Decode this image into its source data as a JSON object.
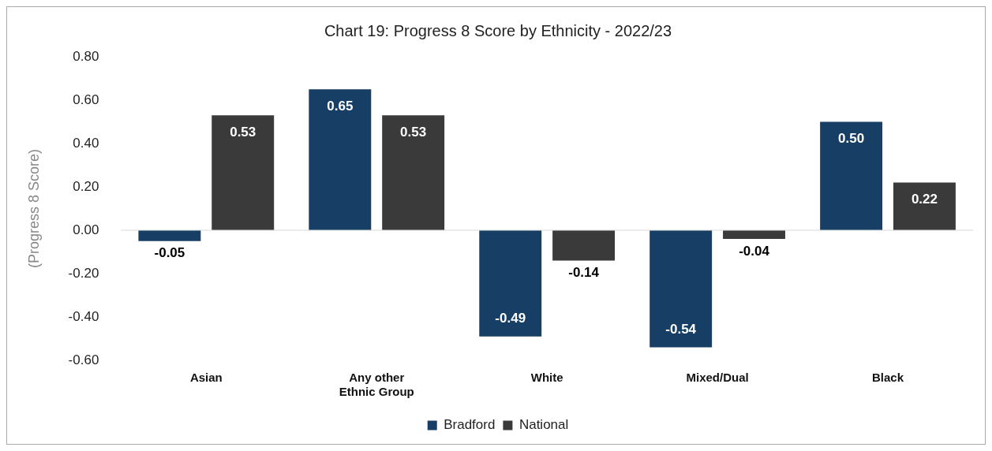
{
  "chart_data": {
    "type": "bar",
    "title": "Chart 19: Progress 8 Score by Ethnicity - 2022/23",
    "ylabel": "(Progress 8 Score)",
    "categories": [
      "Asian",
      "Any other Ethnic Group",
      "White",
      "Mixed/Dual",
      "Black"
    ],
    "series": [
      {
        "name": "Bradford",
        "color": "#173f66",
        "values": [
          -0.05,
          0.65,
          -0.49,
          -0.54,
          0.5
        ],
        "value_labels": [
          "-0.05",
          "0.65",
          "-0.49",
          "-0.54",
          "0.50"
        ]
      },
      {
        "name": "National",
        "color": "#3a3a3a",
        "values": [
          0.53,
          0.53,
          -0.14,
          -0.04,
          0.22
        ],
        "value_labels": [
          "0.53",
          "0.53",
          "-0.14",
          "-0.04",
          "0.22"
        ]
      }
    ],
    "ylim": [
      -0.6,
      0.8
    ],
    "yticks": [
      {
        "value": -0.6,
        "label": "-0.60"
      },
      {
        "value": -0.4,
        "label": "-0.40"
      },
      {
        "value": -0.2,
        "label": "-0.20"
      },
      {
        "value": 0,
        "label": "0.00"
      },
      {
        "value": 0.2,
        "label": "0.20"
      },
      {
        "value": 0.4,
        "label": "0.40"
      },
      {
        "value": 0.6,
        "label": "0.60"
      },
      {
        "value": 0.8,
        "label": "0.80"
      }
    ],
    "ref_lines": [
      {
        "axis": "y",
        "value": 0,
        "color": "#d9d9d9"
      }
    ],
    "grid": false,
    "legend": "bottom"
  }
}
